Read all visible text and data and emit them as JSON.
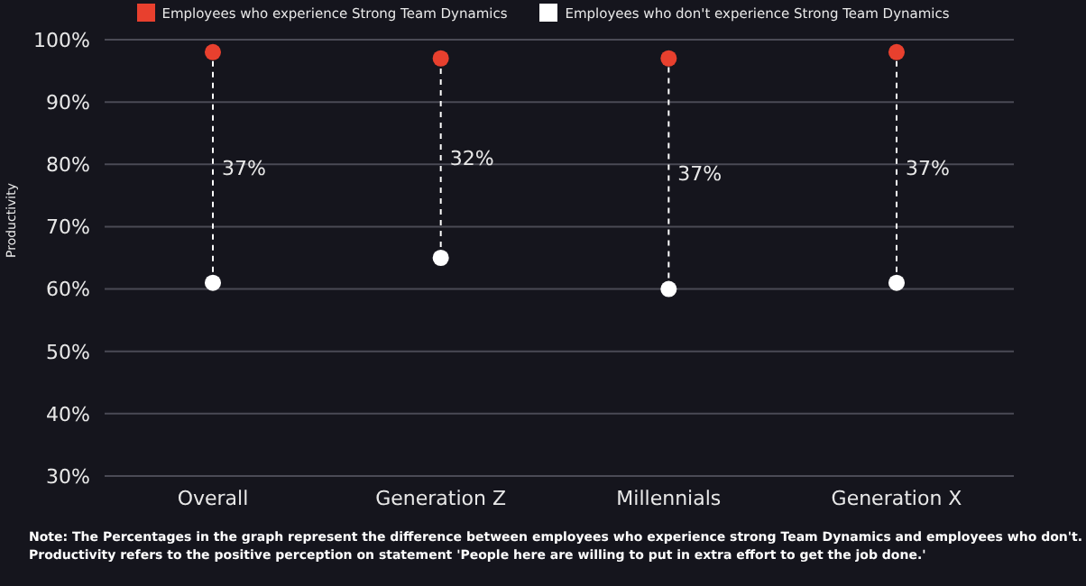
{
  "chart_data": {
    "type": "scatter",
    "ylabel": "Productivity",
    "categories": [
      "Overall",
      "Generation Z",
      "Millennials",
      "Generation X"
    ],
    "series": [
      {
        "name": "Employees who experience Strong Team Dynamics",
        "color": "#e8402e",
        "values": [
          98,
          97,
          97,
          98
        ]
      },
      {
        "name": "Employees who don't experience Strong Team Dynamics",
        "color": "#ffffff",
        "values": [
          61,
          65,
          60,
          61
        ]
      }
    ],
    "ylim": [
      30,
      100
    ],
    "yticks": [
      {
        "value": 30,
        "label": "30%"
      },
      {
        "value": 40,
        "label": "40%"
      },
      {
        "value": 50,
        "label": "50%"
      },
      {
        "value": 60,
        "label": "60%"
      },
      {
        "value": 70,
        "label": "70%"
      },
      {
        "value": 80,
        "label": "80%"
      },
      {
        "value": 90,
        "label": "90%"
      },
      {
        "value": 100,
        "label": "100%"
      }
    ],
    "grid": "y",
    "legend": "top",
    "marker": "circle",
    "annotations": [
      "37%",
      "32%",
      "37%",
      "37%",
      "Note: The Percentages in the graph represent the difference between employees who experience strong Team Dynamics and employees who don't.\nProductivity refers to the positive perception on statement 'People here are willing to put in extra effort to get the job done.'"
    ]
  }
}
